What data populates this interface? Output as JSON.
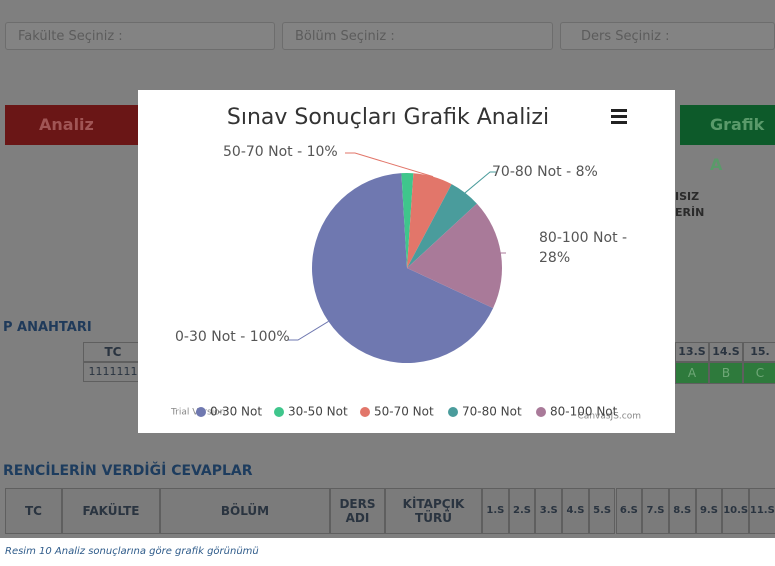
{
  "filters": [
    "Fakülte Seçiniz :",
    "Bölüm Seçiniz :",
    "Ders Seçiniz :"
  ],
  "buttons": [
    "Analiz",
    "Grafik A"
  ],
  "side_header": [
    "ISIZ",
    "ERİN"
  ],
  "answer_key": {
    "title": "P ANAHTARI",
    "header": [
      "TC",
      "13.S",
      "14.S",
      "15."
    ],
    "row": [
      "1111111",
      "A",
      "B",
      "C"
    ]
  },
  "answers": {
    "title": "RENCİLERİN VERDİĞİ CEVAPLAR",
    "header": [
      "TC",
      "FAKÜLTE",
      "BÖLÜM",
      "DERS ADI",
      "KİTAPÇIK TÜRÜ",
      "1.S",
      "2.S",
      "3.S",
      "4.S",
      "5.S",
      "6.S",
      "7.S",
      "8.S",
      "9.S",
      "10.S",
      "11.S"
    ]
  },
  "watermark": [
    "Trial Version",
    "CanvasJS.com"
  ],
  "caption": "Resim 10 Analiz sonuçlarına göre grafik görünümü",
  "chart_data": {
    "type": "pie",
    "title": "Sınav Sonuçları Grafik Analizi",
    "categories": [
      "0-30 Not",
      "30-50 Not",
      "50-70 Not",
      "70-80 Not",
      "80-100 Not"
    ],
    "values": [
      100,
      3,
      10,
      8,
      28
    ],
    "value_labels": [
      "0-30 Not - 100%",
      null,
      "50-70 Not - 10%",
      "70-80 Not - 8%",
      "80-100 Not - 28%"
    ],
    "colors": [
      "#6f78b0",
      "#3fc68c",
      "#e2766a",
      "#4a9c9c",
      "#a97a99"
    ],
    "legend": "bottom"
  }
}
